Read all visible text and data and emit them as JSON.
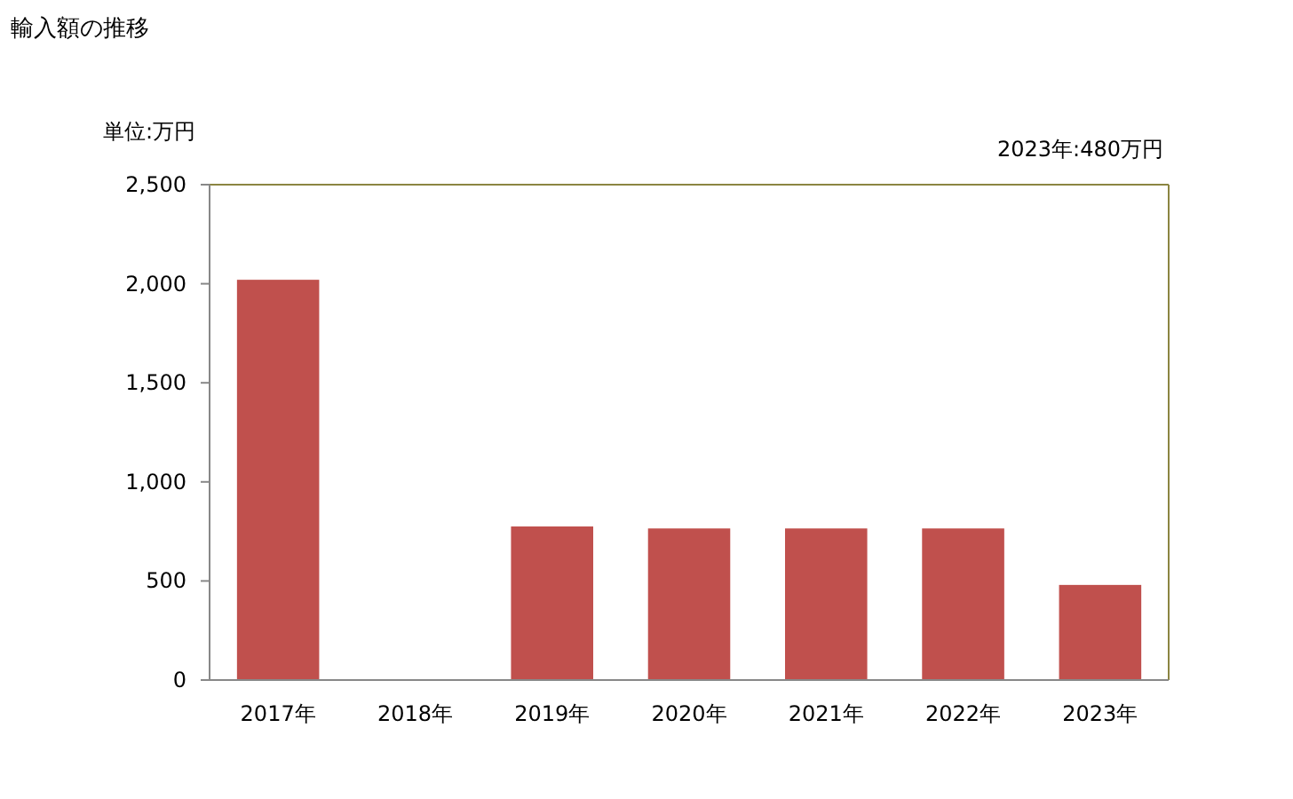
{
  "chart_data": {
    "type": "bar",
    "title": "輸入額の推移",
    "annotations": [
      "単位:万円",
      "2023年:480万円"
    ],
    "categories": [
      "2017年",
      "2018年",
      "2019年",
      "2020年",
      "2021年",
      "2022年",
      "2023年"
    ],
    "values": [
      2020,
      null,
      775,
      765,
      765,
      765,
      480
    ],
    "color": "#c0504d",
    "ylim": [
      0,
      2500
    ],
    "yticks": [
      {
        "value": 0,
        "label": "0"
      },
      {
        "value": 500,
        "label": "500"
      },
      {
        "value": 1000,
        "label": "1,000"
      },
      {
        "value": 1500,
        "label": "1,500"
      },
      {
        "value": 2000,
        "label": "2,000"
      },
      {
        "value": 2500,
        "label": "2,500"
      }
    ],
    "grid": false
  }
}
